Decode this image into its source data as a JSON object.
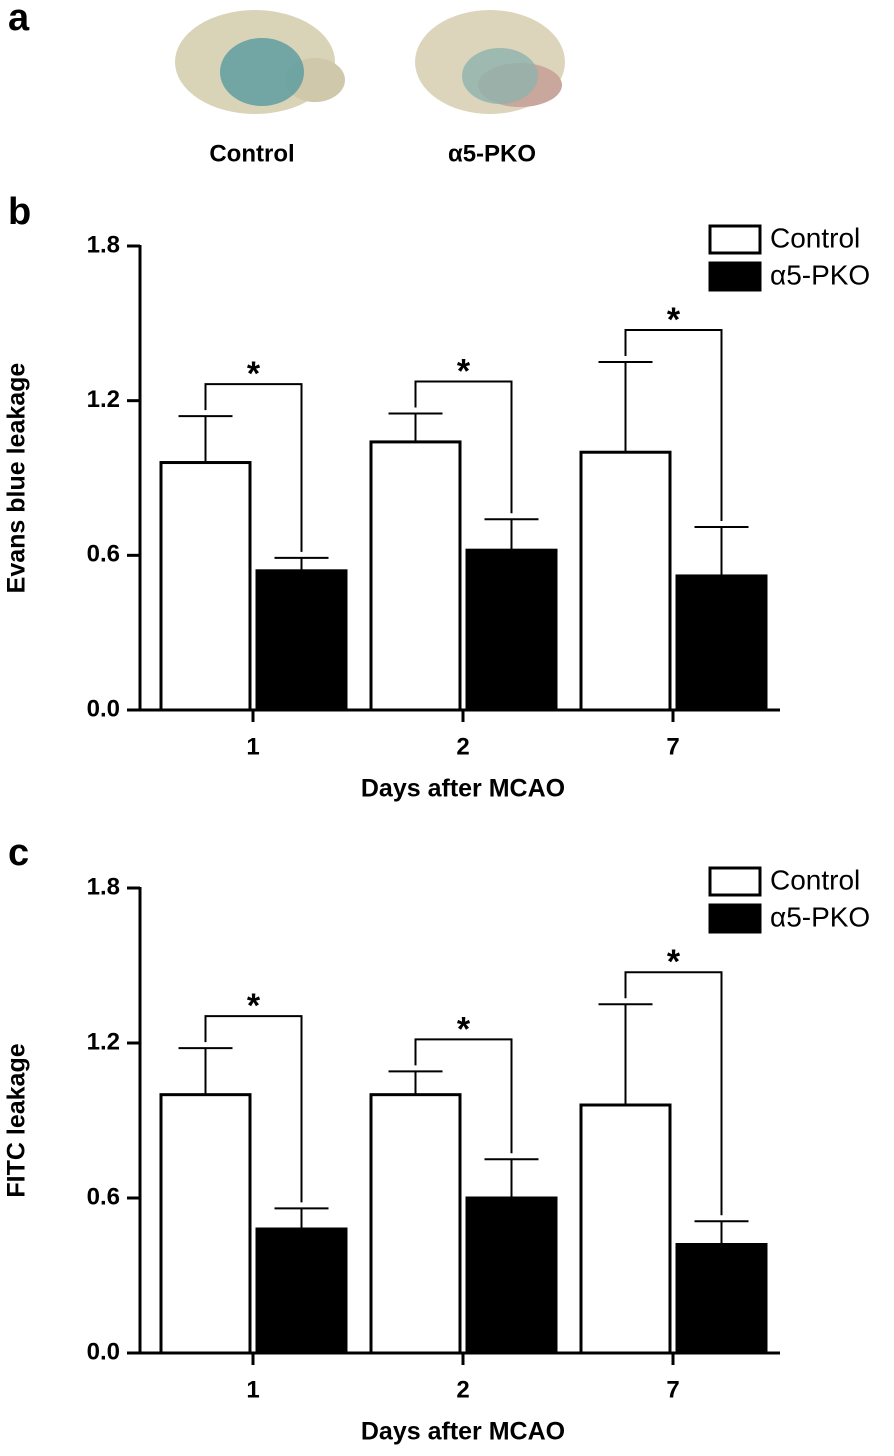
{
  "figure": {
    "panel_labels": [
      "a",
      "b",
      "c"
    ],
    "image_labels": [
      "Control",
      "α5-PKO"
    ]
  },
  "chart_data": [
    {
      "type": "bar",
      "y_label": "Evans blue leakage",
      "x_label": "Days after MCAO",
      "categories": [
        "1",
        "2",
        "7"
      ],
      "series": [
        {
          "name": "Control",
          "color": "#ffffff",
          "values": [
            0.96,
            1.04,
            1.0
          ],
          "errors": [
            0.18,
            0.11,
            0.35
          ]
        },
        {
          "name": "α5-PKO",
          "color": "#000000",
          "values": [
            0.54,
            0.62,
            0.52
          ],
          "errors": [
            0.05,
            0.12,
            0.19
          ]
        }
      ],
      "significance": [
        "*",
        "*",
        "*"
      ],
      "ylim": [
        0,
        1.8
      ],
      "yticks": [
        {
          "value": 0,
          "label": "0.0"
        },
        0.6,
        1.2,
        1.8
      ],
      "legend": "upper right"
    },
    {
      "type": "bar",
      "y_label": "FITC leakage",
      "x_label": "Days after MCAO",
      "categories": [
        "1",
        "2",
        "7"
      ],
      "series": [
        {
          "name": "Control",
          "color": "#ffffff",
          "values": [
            1.0,
            1.0,
            0.96
          ],
          "errors": [
            0.18,
            0.09,
            0.39
          ]
        },
        {
          "name": "α5-PKO",
          "color": "#000000",
          "values": [
            0.48,
            0.6,
            0.42
          ],
          "errors": [
            0.08,
            0.15,
            0.09
          ]
        }
      ],
      "significance": [
        "*",
        "*",
        "*"
      ],
      "ylim": [
        0,
        1.8
      ],
      "yticks": [
        {
          "value": 0,
          "label": "0.0"
        },
        0.6,
        1.2,
        1.8
      ],
      "legend": "upper right"
    }
  ]
}
